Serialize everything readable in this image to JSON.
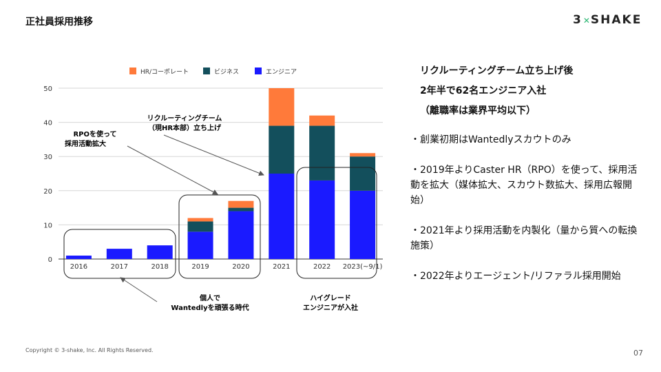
{
  "slide": {
    "title": "正社員採用推移",
    "logo": {
      "left": "3",
      "mark": "✕",
      "right": "SHAKE"
    },
    "copyright": "Copyright © 3-shake, Inc. All Rights Reserved.",
    "page_number": "07"
  },
  "headline": [
    "リクルーティングチーム立ち上げ後",
    "2年半で62名エンジニア入社",
    "（離職率は業界平均以下）"
  ],
  "bullets": [
    "・創業初期はWantedlyスカウトのみ",
    "・2019年よりCaster HR（RPO）を使って、採用活動を拡大（媒体拡大、スカウト数拡大、採用広報開始）",
    "・2021年より採用活動を内製化（量から質への転換施策）",
    "・2022年よりエージェント/リファラル採用開始"
  ],
  "annotations": {
    "rpo": [
      "RPOを使って",
      "採用活動拡大"
    ],
    "recruiting_team": [
      "リクルーティングチーム",
      "（現HR本部）立ち上げ"
    ],
    "individual": [
      "個人で",
      "Wantedlyを頑張る時代"
    ],
    "high_grade": [
      "ハイグレード",
      "エンジニアが入社"
    ]
  },
  "chart_data": {
    "type": "bar",
    "stacked": true,
    "categories": [
      "2016",
      "2017",
      "2018",
      "2019",
      "2020",
      "2021",
      "2022",
      "2023(~9/1)"
    ],
    "series": [
      {
        "name": "エンジニア",
        "color": "#1a1aff",
        "values": [
          1,
          3,
          4,
          8,
          14,
          25,
          23,
          20
        ]
      },
      {
        "name": "ビジネス",
        "color": "#134f5c",
        "values": [
          0,
          0,
          0,
          3,
          1,
          14,
          16,
          10
        ]
      },
      {
        "name": "HR/コーポレート",
        "color": "#ff7a3a",
        "values": [
          0,
          0,
          0,
          1,
          2,
          11,
          3,
          1
        ]
      }
    ],
    "legend_order": [
      "HR/コーポレート",
      "ビジネス",
      "エンジニア"
    ],
    "legend_position": "top",
    "ylim": [
      0,
      50
    ],
    "yticks": [
      0,
      10,
      20,
      30,
      40,
      50
    ],
    "grid": true
  }
}
